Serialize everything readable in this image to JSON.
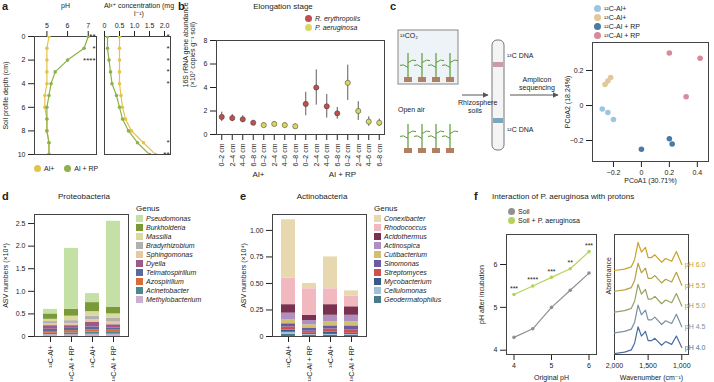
{
  "chart_data": [
    {
      "panel": "a",
      "type": "line",
      "x_label": "pH",
      "y_label": "Soil profile depth (cm)",
      "xlim": [
        4.4,
        7.4
      ],
      "xticks": [
        5,
        6,
        7
      ],
      "ylim": [
        0,
        10
      ],
      "yticks": [
        0,
        2,
        4,
        6,
        8,
        10
      ],
      "y": [
        0,
        1,
        2,
        3,
        4,
        5,
        6,
        7,
        8,
        9,
        10
      ],
      "series": [
        {
          "name": "Al+",
          "color": "#e3c34a",
          "marker": "circle",
          "values": [
            5.1,
            5.0,
            5.0,
            5.0,
            5.0,
            4.9,
            4.9,
            5.0,
            5.0,
            5.1,
            5.1
          ]
        },
        {
          "name": "Al + RP",
          "color": "#8db24a",
          "marker": "circle",
          "values": [
            7.0,
            6.8,
            6.0,
            5.4,
            5.2,
            5.1,
            5.0,
            5.0,
            5.0,
            5.1,
            5.1
          ]
        }
      ],
      "annotations": [
        {
          "y": 0,
          "text": "**"
        },
        {
          "y": 1,
          "text": "*"
        },
        {
          "y": 2,
          "text": "****"
        }
      ]
    },
    {
      "type": "line",
      "x_label": "Al³⁺ concentration (mg l⁻¹)",
      "xlim": [
        0,
        2.2
      ],
      "xticks": [
        0,
        0.5,
        {
          "value": 1,
          "label": "1.0"
        },
        1.5,
        {
          "value": 2,
          "label": "2.0"
        }
      ],
      "ylim": [
        0,
        10
      ],
      "tick_labels": "x",
      "y": [
        0,
        1,
        2,
        3,
        4,
        5,
        6,
        7,
        8,
        9,
        10
      ],
      "series": [
        {
          "name": "Al+",
          "color": "#e3c34a",
          "marker": "circle",
          "values": [
            0.5,
            0.5,
            0.5,
            0.5,
            0.5,
            0.55,
            0.6,
            0.7,
            0.9,
            1.3,
            1.7
          ]
        },
        {
          "name": "Al + RP",
          "color": "#8db24a",
          "marker": "circle",
          "values": [
            0.1,
            0.1,
            0.15,
            0.2,
            0.25,
            0.4,
            0.5,
            0.6,
            0.8,
            1.1,
            1.5
          ]
        }
      ],
      "annotations": [
        {
          "y": 0,
          "text": "*"
        },
        {
          "y": 1,
          "text": "*"
        },
        {
          "y": 2,
          "text": "*"
        },
        {
          "y": 3,
          "text": "*"
        },
        {
          "y": 4,
          "text": "*"
        },
        {
          "y": 9,
          "text": "*"
        },
        {
          "y": 10,
          "text": "**"
        }
      ]
    },
    {
      "panel": "b",
      "type": "scatter",
      "title": "Elongation stage",
      "y_label": "16S rRNA gene abundance (×10⁷ copies g⁻¹ soil)",
      "ylim": [
        0,
        8
      ],
      "yticks": [
        0,
        2,
        4,
        6,
        8
      ],
      "categories": [
        "0–2 cm",
        "2–4 cm",
        "4–6 cm",
        "6–8 cm",
        "0–2 cm",
        "2–4 cm",
        "4–6 cm",
        "6–8 cm",
        "0–2 cm",
        "2–4 cm",
        "4–6 cm",
        "6–8 cm",
        "0–2 cm",
        "2–4 cm",
        "4–6 cm",
        "6–8 cm"
      ],
      "groups": [
        "Al+",
        "Al + RP"
      ],
      "series": [
        {
          "name": "R. erythropolis",
          "color": "#c0504d",
          "values": [
            1.5,
            1.4,
            1.3,
            1.0,
            null,
            null,
            null,
            null,
            2.6,
            4.0,
            2.4,
            1.8,
            null,
            null,
            null,
            null
          ],
          "errors": [
            0.4,
            0.3,
            0.3,
            0.2,
            null,
            null,
            null,
            null,
            1.0,
            1.5,
            1.0,
            0.5,
            null,
            null,
            null,
            null
          ]
        },
        {
          "name": "P. aeruginosa",
          "color": "#d8d860",
          "values": [
            null,
            null,
            null,
            null,
            0.8,
            0.9,
            0.8,
            0.7,
            null,
            null,
            null,
            null,
            4.4,
            2.0,
            1.1,
            1.0
          ],
          "errors": [
            null,
            null,
            null,
            null,
            0.2,
            0.2,
            0.2,
            0.2,
            null,
            null,
            null,
            null,
            1.5,
            0.8,
            0.4,
            0.3
          ]
        }
      ]
    },
    {
      "panel": "c",
      "type": "scatter",
      "x_label": "PCoA1 (30.71%)",
      "y_label": "PCoA2 (18.24%)",
      "xlim": [
        -0.35,
        0.48
      ],
      "xticks": [
        {
          "value": -0.2,
          "label": "−0.2"
        },
        0,
        0.2,
        0.4
      ],
      "ylim": [
        -0.32,
        0.36
      ],
      "yticks": [
        {
          "value": -0.2,
          "label": "−0.2"
        },
        0,
        0.2
      ],
      "series": [
        {
          "name": "¹²C-Al+",
          "color": "#9ec5e0",
          "x": [
            -0.28,
            -0.2,
            -0.24
          ],
          "y": [
            -0.02,
            -0.08,
            -0.04
          ]
        },
        {
          "name": "¹³C-Al+",
          "color": "#e0c89a",
          "x": [
            -0.26,
            -0.24,
            -0.22
          ],
          "y": [
            0.12,
            0.14,
            0.16
          ]
        },
        {
          "name": "¹²C-Al + RP",
          "color": "#4a7aa8",
          "x": [
            0.0,
            0.2,
            0.22
          ],
          "y": [
            -0.25,
            -0.19,
            -0.22
          ]
        },
        {
          "name": "¹³C-Al + RP",
          "color": "#d88a9a",
          "x": [
            0.2,
            0.42,
            0.32
          ],
          "y": [
            0.3,
            0.27,
            0.05
          ]
        }
      ]
    },
    {
      "panel": "d",
      "type": "bar",
      "stacked": true,
      "title": "Proteobacteria",
      "legend_title": "Genus",
      "y_label": "ASV numbers (×10⁴)",
      "ylim": [
        0,
        2.7
      ],
      "yticks": [
        0,
        0.5,
        {
          "value": 1,
          "label": "1.0"
        },
        1.5,
        {
          "value": 2,
          "label": "2.0"
        },
        2.5
      ],
      "categories": [
        "¹²C-Al+",
        "¹²C-Al + RP",
        "¹³C-Al+",
        "¹³C-Al + RP"
      ],
      "series": [
        {
          "name": "Pseudomonas",
          "color": "#c5e0a5",
          "values": [
            0.1,
            1.35,
            0.2,
            1.9
          ]
        },
        {
          "name": "Burkholderia",
          "color": "#7a9a3a",
          "values": [
            0.12,
            0.15,
            0.2,
            0.15
          ]
        },
        {
          "name": "Massilia",
          "color": "#d9d9a0",
          "values": [
            0.05,
            0.1,
            0.1,
            0.1
          ]
        },
        {
          "name": "Bradyrhizobium",
          "color": "#b0b0b0",
          "values": [
            0.05,
            0.06,
            0.08,
            0.08
          ]
        },
        {
          "name": "Sphingomonas",
          "color": "#e8c8a0",
          "values": [
            0.04,
            0.05,
            0.06,
            0.06
          ]
        },
        {
          "name": "Dyella",
          "color": "#9b5a8a",
          "values": [
            0.08,
            0.06,
            0.1,
            0.07
          ]
        },
        {
          "name": "Telmatospirillum",
          "color": "#5a6a9a",
          "values": [
            0.05,
            0.05,
            0.06,
            0.05
          ]
        },
        {
          "name": "Azospirillum",
          "color": "#d96a3a",
          "values": [
            0.04,
            0.05,
            0.05,
            0.05
          ]
        },
        {
          "name": "Acinetobacter",
          "color": "#4a8a8a",
          "values": [
            0.03,
            0.04,
            0.05,
            0.04
          ]
        },
        {
          "name": "Methylobacterium",
          "color": "#c8b0d0",
          "values": [
            0.04,
            0.04,
            0.05,
            0.05
          ]
        }
      ]
    },
    {
      "panel": "e",
      "type": "bar",
      "stacked": true,
      "title": "Actinobacteria",
      "legend_title": "Genus",
      "y_label": "ASV numbers (×10⁴)",
      "ylim": [
        0,
        1.15
      ],
      "yticks": [
        0,
        0.25,
        {
          "value": 0.5,
          "label": "0.50"
        },
        0.75,
        {
          "value": 1,
          "label": "1.00"
        }
      ],
      "categories": [
        "¹²C-Al+",
        "¹²C-Al + RP",
        "¹³C-Al+",
        "¹³C-Al + RP"
      ],
      "series": [
        {
          "name": "Conexibacter",
          "color": "#e8d8b0",
          "values": [
            0.55,
            0.05,
            0.3,
            0.05
          ]
        },
        {
          "name": "Rhodococcus",
          "color": "#f2b8c0",
          "values": [
            0.25,
            0.25,
            0.15,
            0.1
          ]
        },
        {
          "name": "Acidothermus",
          "color": "#7a3050",
          "values": [
            0.08,
            0.05,
            0.1,
            0.08
          ]
        },
        {
          "name": "Actinospica",
          "color": "#b08fc0",
          "values": [
            0.06,
            0.04,
            0.06,
            0.06
          ]
        },
        {
          "name": "Cutibacterium",
          "color": "#d0c070",
          "values": [
            0.04,
            0.03,
            0.04,
            0.04
          ]
        },
        {
          "name": "Sinomonas",
          "color": "#6a5aa0",
          "values": [
            0.03,
            0.03,
            0.03,
            0.04
          ]
        },
        {
          "name": "Streptomyces",
          "color": "#d05050",
          "values": [
            0.03,
            0.02,
            0.03,
            0.03
          ]
        },
        {
          "name": "Mycobacterium",
          "color": "#3a5a8a",
          "values": [
            0.02,
            0.01,
            0.02,
            0.01
          ]
        },
        {
          "name": "Cellulomonas",
          "color": "#a0c0d8",
          "values": [
            0.02,
            0.01,
            0.01,
            0.01
          ]
        },
        {
          "name": "Geodermatophilus",
          "color": "#4a7a8a",
          "values": [
            0.02,
            0.01,
            0.01,
            0.01
          ]
        }
      ]
    },
    {
      "panel": "f",
      "type": "line",
      "title": "Interaction of P. aeruginosa with protons",
      "x_label": "Original pH",
      "y_label": "pH after incubation",
      "xlim": [
        3.8,
        6.2
      ],
      "xticks": [
        4,
        5,
        6
      ],
      "ylim": [
        3.9,
        6.7
      ],
      "yticks": [
        4,
        5,
        6
      ],
      "x": [
        4,
        4.5,
        5,
        5.5,
        6
      ],
      "series": [
        {
          "name": "Soil",
          "color": "#909090",
          "marker": "circle",
          "values": [
            4.3,
            4.5,
            5.0,
            5.4,
            5.8
          ]
        },
        {
          "name": "Soil + P. aeruginosa",
          "color": "#b5d35a",
          "marker": "circle",
          "values": [
            5.3,
            5.5,
            5.7,
            5.9,
            6.3
          ]
        }
      ],
      "annotations": [
        "***",
        "****",
        "***",
        "**",
        "***"
      ]
    },
    {
      "type": "line",
      "x_label": "Wavenumber (cm⁻¹)",
      "y_label": "Absorbance",
      "tick_labels": "x",
      "xlim": [
        2000,
        900
      ],
      "xticks": [
        {
          "value": 2000,
          "label": "2,000"
        },
        {
          "value": 1500,
          "label": "1,500"
        },
        {
          "value": 1000,
          "label": "1,000"
        }
      ],
      "ylim": [
        0,
        2.6
      ],
      "x": [
        2000,
        1850,
        1750,
        1700,
        1650,
        1600,
        1540,
        1500,
        1450,
        1400,
        1300,
        1240,
        1150,
        1080,
        1000
      ],
      "series": [
        {
          "name": "pH 6.0",
          "color": "#c9a227",
          "values": [
            1.82,
            1.85,
            1.9,
            2.06,
            2.43,
            2.22,
            2.32,
            2.1,
            2.1,
            2.16,
            2.0,
            2.08,
            2.02,
            2.23,
            1.95
          ]
        },
        {
          "name": "pH 5.5",
          "color": "#b8a040",
          "values": [
            1.37,
            1.4,
            1.45,
            1.61,
            1.98,
            1.77,
            1.87,
            1.65,
            1.65,
            1.71,
            1.55,
            1.63,
            1.57,
            1.78,
            1.5
          ]
        },
        {
          "name": "pH 5.0",
          "color": "#9aa060",
          "values": [
            0.92,
            0.95,
            1.0,
            1.16,
            1.52,
            1.31,
            1.41,
            1.2,
            1.2,
            1.26,
            1.1,
            1.18,
            1.12,
            1.32,
            1.05
          ]
        },
        {
          "name": "pH 4.5",
          "color": "#7a90a0",
          "values": [
            0.47,
            0.5,
            0.55,
            0.7,
            1.07,
            0.86,
            0.96,
            0.75,
            0.75,
            0.81,
            0.65,
            0.73,
            0.67,
            0.87,
            0.6
          ]
        },
        {
          "name": "pH 4.0",
          "color": "#4a6fa5",
          "values": [
            0.02,
            0.05,
            0.1,
            0.25,
            0.6,
            0.4,
            0.5,
            0.3,
            0.3,
            0.35,
            0.2,
            0.28,
            0.22,
            0.4,
            0.15
          ]
        }
      ]
    }
  ],
  "diagram": {
    "chamber": "¹³CO₂",
    "open_air": "Open air",
    "soils": "Rhizosphere soils",
    "heavy": "¹³C DNA",
    "light": "¹²C DNA",
    "sequencing": "Amplicon sequencing"
  }
}
